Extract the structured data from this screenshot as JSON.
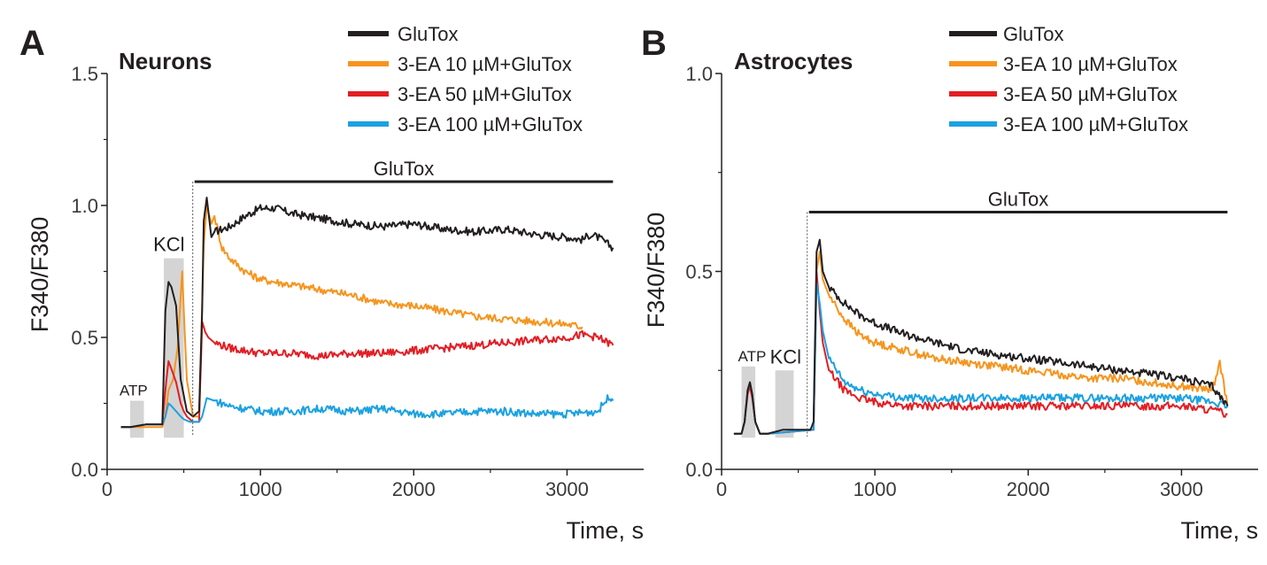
{
  "figure": {
    "panels": [
      {
        "letter": "A",
        "title": "Neurons",
        "ylabel": "F340/F380",
        "xlabel": "Time, s",
        "yticks": [
          "0.0",
          "0.5",
          "1.0",
          "1.5"
        ],
        "xticks": [
          "0",
          "1000",
          "2000",
          "3000"
        ],
        "legend": [
          "GluTox",
          "3-EA 10 µM+GluTox",
          "3-EA 50 µM+GluTox",
          "3-EA 100 µM+GluTox"
        ],
        "glutox_bar_label": "GluTox",
        "atp_label": "ATP",
        "kcl_label": "KCl"
      },
      {
        "letter": "B",
        "title": "Astrocytes",
        "ylabel": "F340/F380",
        "xlabel": "Time, s",
        "yticks": [
          "0.0",
          "0.5",
          "1.0"
        ],
        "xticks": [
          "0",
          "1000",
          "2000",
          "3000"
        ],
        "legend": [
          "GluTox",
          "3-EA 10 µM+GluTox",
          "3-EA 50 µM+GluTox",
          "3-EA 100 µM+GluTox"
        ],
        "glutox_bar_label": "GluTox",
        "atp_label": "ATP",
        "kcl_label": "KCl"
      }
    ]
  },
  "colors": {
    "GluTox": "#231f20",
    "3-EA 10 µM+GluTox": "#f7941d",
    "3-EA 50 µM+GluTox": "#e31e24",
    "3-EA 100 µM+GluTox": "#1ba1e2",
    "shade": "#d4d4d4"
  },
  "chart_data": [
    {
      "type": "line",
      "title": "Neurons",
      "xlabel": "Time, s",
      "ylabel": "F340/F380",
      "xlim": [
        0,
        3500
      ],
      "ylim": [
        0,
        1.5
      ],
      "grid": false,
      "legend_position": "top-right",
      "annotations": [
        {
          "label": "ATP",
          "type": "shaded",
          "x": [
            150,
            240
          ],
          "y": [
            0.12,
            0.26
          ]
        },
        {
          "label": "KCl",
          "type": "shaded",
          "x": [
            370,
            500
          ],
          "y": [
            0.12,
            0.8
          ]
        },
        {
          "label": "GluTox",
          "type": "bar",
          "x": [
            570,
            3300
          ],
          "y": 1.09
        }
      ],
      "series": [
        {
          "name": "GluTox",
          "x": [
            90,
            150,
            250,
            360,
            380,
            400,
            420,
            450,
            480,
            500,
            520,
            560,
            600,
            620,
            630,
            650,
            680,
            700,
            800,
            900,
            1000,
            1100,
            1200,
            1400,
            1600,
            1800,
            2000,
            2200,
            2400,
            2600,
            2800,
            3000,
            3100,
            3150,
            3200,
            3250,
            3300
          ],
          "y": [
            0.16,
            0.16,
            0.17,
            0.17,
            0.6,
            0.71,
            0.69,
            0.62,
            0.34,
            0.28,
            0.22,
            0.2,
            0.22,
            0.6,
            0.94,
            1.03,
            0.88,
            0.9,
            0.92,
            0.96,
            0.99,
            0.99,
            0.97,
            0.95,
            0.93,
            0.92,
            0.93,
            0.91,
            0.9,
            0.91,
            0.89,
            0.88,
            0.87,
            0.89,
            0.88,
            0.86,
            0.84
          ]
        },
        {
          "name": "3-EA 10 µM+GluTox",
          "x": [
            90,
            150,
            250,
            360,
            380,
            400,
            430,
            460,
            490,
            500,
            520,
            560,
            600,
            630,
            650,
            680,
            700,
            750,
            800,
            900,
            1000,
            1200,
            1400,
            1600,
            1800,
            2000,
            2200,
            2400,
            2600,
            2800,
            3000,
            3100
          ],
          "y": [
            0.16,
            0.16,
            0.16,
            0.16,
            0.2,
            0.3,
            0.34,
            0.46,
            0.75,
            0.6,
            0.34,
            0.2,
            0.2,
            0.85,
            1.0,
            0.93,
            0.96,
            0.84,
            0.8,
            0.75,
            0.72,
            0.7,
            0.68,
            0.66,
            0.63,
            0.62,
            0.6,
            0.58,
            0.57,
            0.56,
            0.55,
            0.54
          ]
        },
        {
          "name": "3-EA 50 µM+GluTox",
          "x": [
            90,
            150,
            250,
            360,
            380,
            400,
            420,
            450,
            480,
            500,
            520,
            560,
            600,
            620,
            640,
            660,
            700,
            800,
            900,
            1000,
            1200,
            1400,
            1600,
            1800,
            2000,
            2200,
            2400,
            2600,
            2800,
            3000,
            3100,
            3200,
            3300
          ],
          "y": [
            0.16,
            0.16,
            0.17,
            0.17,
            0.3,
            0.41,
            0.38,
            0.33,
            0.25,
            0.22,
            0.2,
            0.18,
            0.18,
            0.56,
            0.52,
            0.5,
            0.48,
            0.46,
            0.45,
            0.44,
            0.44,
            0.43,
            0.44,
            0.44,
            0.45,
            0.46,
            0.47,
            0.48,
            0.49,
            0.5,
            0.51,
            0.5,
            0.47
          ]
        },
        {
          "name": "3-EA 100 µM+GluTox",
          "x": [
            90,
            150,
            250,
            360,
            380,
            400,
            420,
            450,
            480,
            500,
            540,
            600,
            620,
            650,
            700,
            800,
            900,
            1000,
            1200,
            1400,
            1600,
            1800,
            2000,
            2200,
            2400,
            2600,
            2800,
            3000,
            3200,
            3280,
            3300
          ],
          "y": [
            0.16,
            0.16,
            0.17,
            0.17,
            0.2,
            0.25,
            0.24,
            0.22,
            0.2,
            0.19,
            0.18,
            0.18,
            0.2,
            0.27,
            0.26,
            0.24,
            0.23,
            0.22,
            0.22,
            0.23,
            0.22,
            0.23,
            0.21,
            0.21,
            0.22,
            0.22,
            0.21,
            0.21,
            0.22,
            0.28,
            0.26
          ]
        }
      ]
    },
    {
      "type": "line",
      "title": "Astrocytes",
      "xlabel": "Time, s",
      "ylabel": "F340/F380",
      "xlim": [
        0,
        3500
      ],
      "ylim": [
        0,
        1.0
      ],
      "grid": false,
      "legend_position": "top-right",
      "annotations": [
        {
          "label": "ATP",
          "type": "shaded",
          "x": [
            130,
            220
          ],
          "y": [
            0.08,
            0.26
          ]
        },
        {
          "label": "KCl",
          "type": "shaded",
          "x": [
            350,
            470
          ],
          "y": [
            0.08,
            0.25
          ]
        },
        {
          "label": "GluTox",
          "type": "bar",
          "x": [
            570,
            3300
          ],
          "y": 0.65
        }
      ],
      "series": [
        {
          "name": "GluTox",
          "x": [
            80,
            130,
            150,
            170,
            185,
            200,
            220,
            250,
            300,
            400,
            500,
            580,
            600,
            620,
            640,
            660,
            700,
            800,
            900,
            1000,
            1200,
            1400,
            1600,
            1800,
            2000,
            2200,
            2400,
            2600,
            2800,
            3000,
            3200,
            3300
          ],
          "y": [
            0.09,
            0.09,
            0.12,
            0.2,
            0.22,
            0.19,
            0.12,
            0.09,
            0.09,
            0.1,
            0.1,
            0.1,
            0.12,
            0.55,
            0.58,
            0.5,
            0.46,
            0.42,
            0.39,
            0.37,
            0.34,
            0.32,
            0.3,
            0.29,
            0.28,
            0.27,
            0.26,
            0.25,
            0.24,
            0.23,
            0.21,
            0.16
          ]
        },
        {
          "name": "3-EA 10 µM+GluTox",
          "x": [
            80,
            130,
            150,
            170,
            185,
            200,
            220,
            250,
            300,
            600,
            620,
            640,
            660,
            700,
            800,
            900,
            1000,
            1200,
            1400,
            1600,
            1800,
            2000,
            2200,
            2400,
            2600,
            2800,
            3000,
            3200,
            3250,
            3300
          ],
          "y": [
            0.09,
            0.09,
            0.12,
            0.2,
            0.22,
            0.19,
            0.12,
            0.09,
            0.09,
            0.1,
            0.5,
            0.55,
            0.48,
            0.44,
            0.38,
            0.34,
            0.32,
            0.3,
            0.28,
            0.27,
            0.26,
            0.25,
            0.24,
            0.23,
            0.23,
            0.22,
            0.21,
            0.2,
            0.27,
            0.16
          ]
        },
        {
          "name": "3-EA 50 µM+GluTox",
          "x": [
            80,
            130,
            150,
            170,
            185,
            200,
            220,
            250,
            300,
            600,
            620,
            640,
            660,
            700,
            800,
            900,
            1000,
            1200,
            1400,
            1600,
            1800,
            2000,
            2200,
            2400,
            2600,
            2800,
            3000,
            3200,
            3300
          ],
          "y": [
            0.09,
            0.09,
            0.12,
            0.19,
            0.21,
            0.18,
            0.12,
            0.09,
            0.09,
            0.1,
            0.5,
            0.4,
            0.32,
            0.25,
            0.2,
            0.18,
            0.17,
            0.16,
            0.16,
            0.16,
            0.16,
            0.16,
            0.16,
            0.16,
            0.16,
            0.16,
            0.16,
            0.15,
            0.14
          ]
        },
        {
          "name": "3-EA 100 µM+GluTox",
          "x": [
            80,
            130,
            150,
            170,
            185,
            200,
            220,
            250,
            300,
            600,
            620,
            640,
            660,
            700,
            800,
            900,
            1000,
            1200,
            1400,
            1600,
            1800,
            2000,
            2200,
            2400,
            2600,
            2800,
            3000,
            3200,
            3300
          ],
          "y": [
            0.09,
            0.09,
            0.12,
            0.2,
            0.22,
            0.19,
            0.12,
            0.09,
            0.09,
            0.1,
            0.47,
            0.42,
            0.35,
            0.28,
            0.22,
            0.2,
            0.19,
            0.18,
            0.18,
            0.18,
            0.18,
            0.18,
            0.18,
            0.18,
            0.18,
            0.18,
            0.18,
            0.17,
            0.16
          ]
        }
      ]
    }
  ]
}
